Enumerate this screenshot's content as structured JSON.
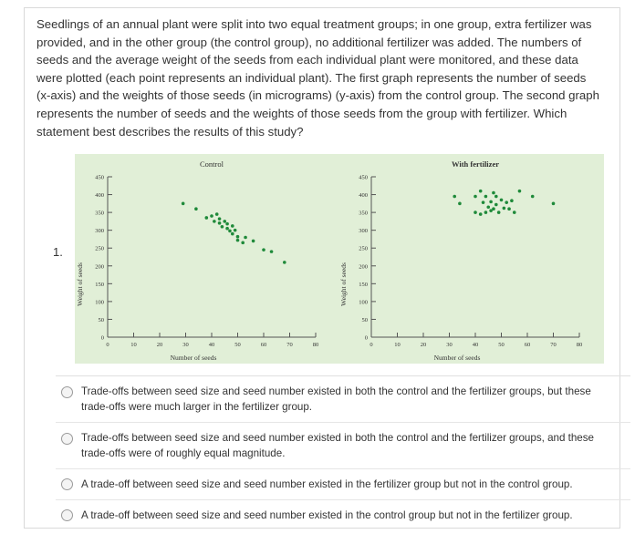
{
  "question": {
    "number": "1.",
    "text": "Seedlings of an annual plant were split into two equal treatment groups; in one group, extra fertilizer was provided, and in the other group (the control group), no additional fertilizer was added. The numbers of seeds and the average weight of the seeds from each individual plant were monitored, and these data were plotted (each point represents an individual plant). The first graph represents the number of seeds (x-axis) and the weights of those seeds (in micrograms) (y-axis) from the control group. The second graph represents the number of seeds and the weights of those seeds from the group with fertilizer. Which statement best describes the results of this study?"
  },
  "options": [
    {
      "label": "Trade-offs between seed size and seed number existed in both the control and the fertilizer groups, but these trade-offs were much larger in the fertilizer group."
    },
    {
      "label": "Trade-offs between seed size and seed number existed in both the control and the fertilizer groups, and these trade-offs were of roughly equal magnitude."
    },
    {
      "label": "A trade-off between seed size and seed number existed in the fertilizer group but not in the control group."
    },
    {
      "label": "A trade-off between seed size and seed number existed in the control group but not in the fertilizer group."
    }
  ],
  "colors": {
    "dot": "#1f8a3a",
    "panel_bg": "#e1efd7",
    "axis": "#555555"
  },
  "chart_data": [
    {
      "type": "scatter",
      "title": "Control",
      "xlabel": "Number of seeds",
      "ylabel": "Weight of seeds",
      "xlim": [
        0,
        80
      ],
      "ylim": [
        0,
        450
      ],
      "xticks": [
        0,
        10,
        20,
        30,
        40,
        50,
        60,
        70,
        80
      ],
      "yticks": [
        0,
        50,
        100,
        150,
        200,
        250,
        300,
        350,
        400,
        450
      ],
      "points": [
        [
          29,
          375
        ],
        [
          34,
          360
        ],
        [
          38,
          335
        ],
        [
          40,
          340
        ],
        [
          41,
          325
        ],
        [
          42,
          345
        ],
        [
          43,
          320
        ],
        [
          43,
          332
        ],
        [
          44,
          310
        ],
        [
          45,
          325
        ],
        [
          46,
          305
        ],
        [
          46,
          318
        ],
        [
          47,
          298
        ],
        [
          48,
          312
        ],
        [
          48,
          290
        ],
        [
          49,
          300
        ],
        [
          50,
          282
        ],
        [
          50,
          272
        ],
        [
          52,
          265
        ],
        [
          53,
          280
        ],
        [
          56,
          270
        ],
        [
          60,
          245
        ],
        [
          63,
          240
        ],
        [
          68,
          210
        ]
      ]
    },
    {
      "type": "scatter",
      "title": "With fertilizer",
      "xlabel": "Number of seeds",
      "ylabel": "Weight of seeds",
      "xlim": [
        0,
        80
      ],
      "ylim": [
        0,
        450
      ],
      "xticks": [
        0,
        10,
        20,
        30,
        40,
        50,
        60,
        70,
        80
      ],
      "yticks": [
        0,
        50,
        100,
        150,
        200,
        250,
        300,
        350,
        400,
        450
      ],
      "points": [
        [
          32,
          395
        ],
        [
          34,
          375
        ],
        [
          40,
          350
        ],
        [
          40,
          395
        ],
        [
          42,
          410
        ],
        [
          42,
          345
        ],
        [
          43,
          378
        ],
        [
          44,
          395
        ],
        [
          44,
          350
        ],
        [
          45,
          365
        ],
        [
          46,
          380
        ],
        [
          46,
          355
        ],
        [
          47,
          405
        ],
        [
          47,
          360
        ],
        [
          48,
          395
        ],
        [
          48,
          372
        ],
        [
          49,
          350
        ],
        [
          50,
          385
        ],
        [
          51,
          362
        ],
        [
          52,
          378
        ],
        [
          53,
          360
        ],
        [
          54,
          383
        ],
        [
          55,
          350
        ],
        [
          57,
          410
        ],
        [
          62,
          395
        ],
        [
          70,
          375
        ]
      ]
    }
  ]
}
